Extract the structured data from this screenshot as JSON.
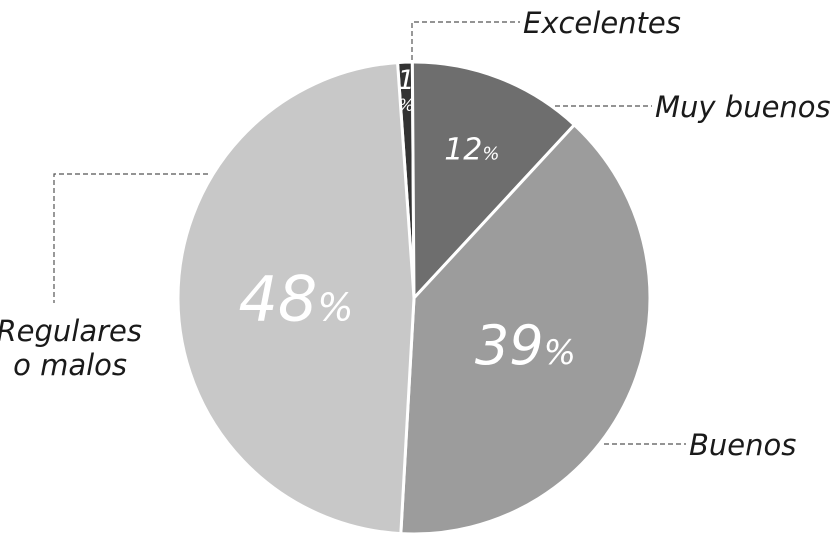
{
  "chart_data": {
    "type": "pie",
    "categories": [
      "Excelentes",
      "Muy buenos",
      "Buenos",
      "Regulares o malos"
    ],
    "values": [
      1,
      12,
      39,
      48
    ],
    "value_labels": [
      "1",
      "12",
      "39",
      "48"
    ],
    "percent_symbol": "%",
    "label_lines": [
      [
        "Excelentes"
      ],
      [
        "Muy buenos"
      ],
      [
        "Buenos"
      ],
      [
        "Regulares",
        "o malos"
      ]
    ],
    "colors": [
      "#333333",
      "#6e6e6e",
      "#9c9c9c",
      "#c8c8c8"
    ],
    "start_angle_deg": -4,
    "direction": "clockwise"
  }
}
